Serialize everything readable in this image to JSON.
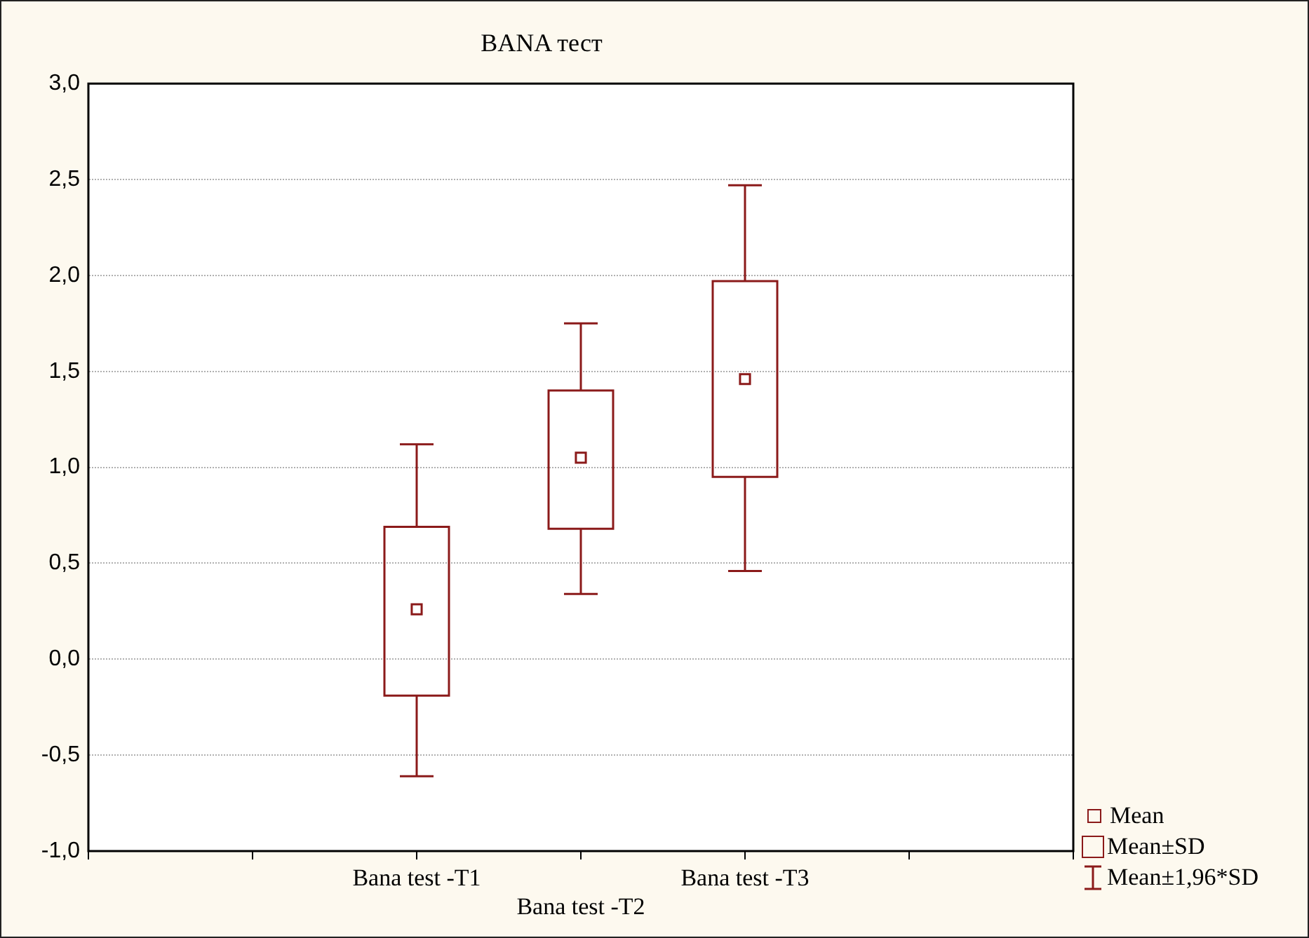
{
  "chart_data": {
    "type": "box",
    "title": "BANA тест",
    "categories": [
      null,
      null,
      "Bana test -T1",
      "Bana test -T2",
      "Bana test -T3",
      null,
      null
    ],
    "boxes": [
      null,
      null,
      {
        "low": -0.61,
        "q1": -0.19,
        "median": 0.26,
        "q3": 0.69,
        "high": 1.12
      },
      {
        "low": 0.34,
        "q1": 0.68,
        "median": 1.05,
        "q3": 1.4,
        "high": 1.75
      },
      {
        "low": 0.46,
        "q1": 0.95,
        "median": 1.46,
        "q3": 1.97,
        "high": 2.47
      },
      null,
      null
    ],
    "color": "#8b1a1a",
    "marker": "square",
    "grid": "y",
    "ylim": [
      -1,
      3
    ],
    "yticks": [
      {
        "value": -1,
        "label": "-1,0"
      },
      {
        "value": -0.5,
        "label": "-0,5"
      },
      {
        "value": 0,
        "label": "0,0"
      },
      {
        "value": 0.5,
        "label": "0,5"
      },
      {
        "value": 1,
        "label": "1,0"
      },
      {
        "value": 1.5,
        "label": "1,5"
      },
      {
        "value": 2,
        "label": "2,0"
      },
      {
        "value": 2.5,
        "label": "2,5"
      },
      {
        "value": 3,
        "label": "3,0"
      }
    ],
    "annotations": [
      "Mean",
      "Mean±SD",
      "Mean±1,96*SD"
    ]
  }
}
